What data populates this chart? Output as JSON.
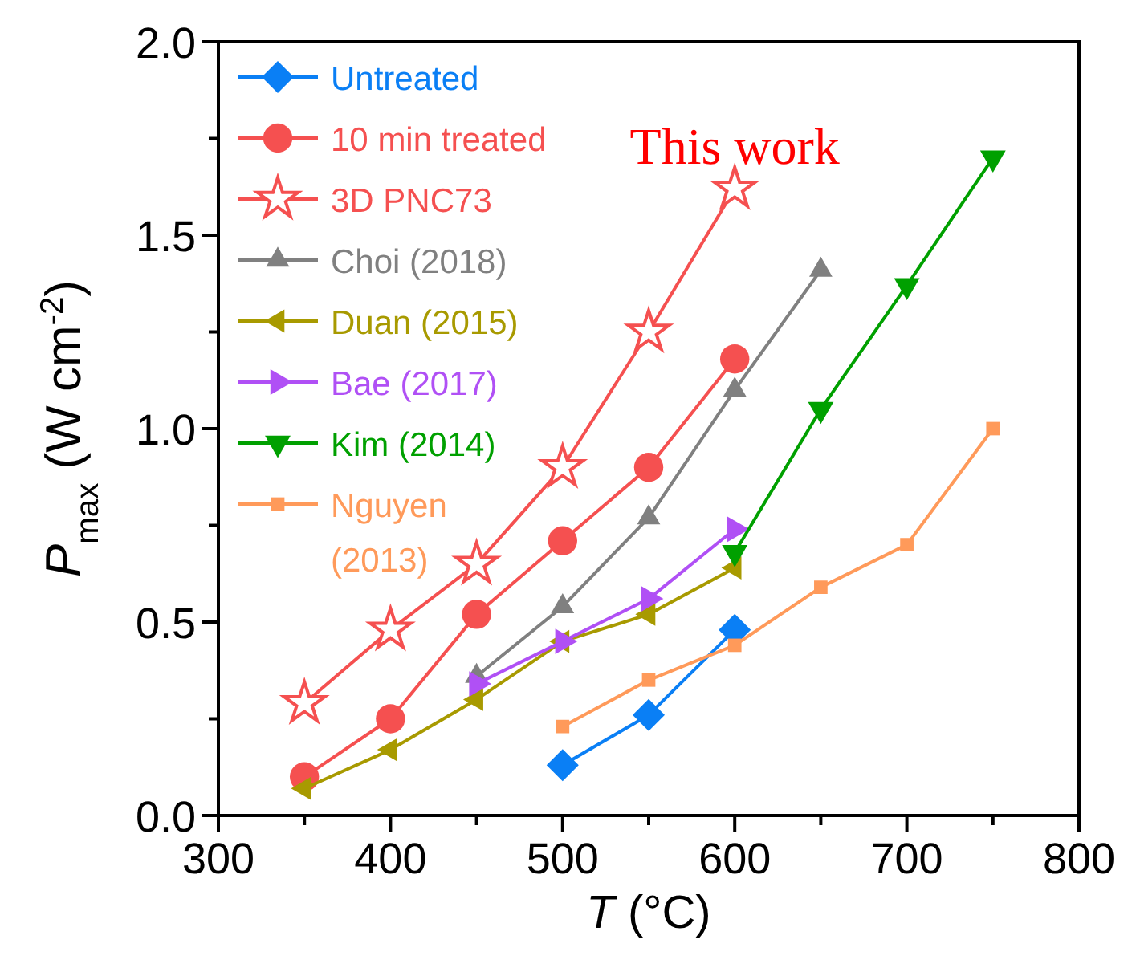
{
  "chart_data": {
    "type": "line",
    "xlabel": "T (°C)",
    "ylabel": "P$_{max}$ (W cm$^{-2}$)",
    "xlim": [
      300,
      800
    ],
    "xticks": [
      300,
      {
        "value": 350,
        "label": null
      },
      400,
      {
        "value": 450,
        "label": null
      },
      500,
      {
        "value": 550,
        "label": null
      },
      600,
      {
        "value": 650,
        "label": null
      },
      700,
      {
        "value": 750,
        "label": null
      },
      800
    ],
    "ylim": [
      0,
      2
    ],
    "yticks": [
      "0.0",
      {
        "value": 0.25,
        "label": null
      },
      {
        "value": 0.5,
        "label": "0.5"
      },
      {
        "value": 0.75,
        "label": null
      },
      {
        "value": 1,
        "label": "1.0"
      },
      {
        "value": 1.25,
        "label": null
      },
      {
        "value": 1.5,
        "label": "1.5"
      },
      {
        "value": 1.75,
        "label": null
      },
      {
        "value": 2,
        "label": "2.0"
      }
    ],
    "grid": false,
    "legend": "top left",
    "line_style": "solid",
    "annotations": [
      "This work"
    ],
    "series": [
      {
        "name": "Untreated",
        "color": "#0a7ff5",
        "marker": "diamond",
        "x": [
          500,
          550,
          600
        ],
        "values": [
          0.13,
          0.26,
          0.48
        ]
      },
      {
        "name": "10 min treated",
        "color": "#f55050",
        "marker": "circle",
        "x": [
          350,
          400,
          450,
          500,
          550,
          600
        ],
        "values": [
          0.1,
          0.25,
          0.52,
          0.71,
          0.9,
          1.18
        ]
      },
      {
        "name": "3D PNC73",
        "color": "#f55050",
        "marker": "star",
        "x": [
          350,
          400,
          450,
          500,
          550,
          600
        ],
        "values": [
          0.29,
          0.48,
          0.65,
          0.9,
          1.25,
          1.62
        ]
      },
      {
        "name": "Choi (2018)",
        "color": "#808080",
        "marker": "triangle",
        "x": [
          450,
          500,
          550,
          600,
          650
        ],
        "values": [
          0.36,
          0.54,
          0.77,
          1.1,
          1.41
        ]
      },
      {
        "name": "Duan (2015)",
        "color": "#a89a00",
        "marker": "triangle-left",
        "x": [
          350,
          400,
          450,
          500,
          550,
          600
        ],
        "values": [
          0.07,
          0.17,
          0.3,
          0.45,
          0.52,
          0.64
        ]
      },
      {
        "name": "Bae (2017)",
        "color": "#b050f5",
        "marker": "triangle-right",
        "x": [
          450,
          500,
          550,
          600
        ],
        "values": [
          0.34,
          0.45,
          0.56,
          0.74
        ]
      },
      {
        "name": "Kim (2014)",
        "color": "#00a000",
        "marker": "triangle-down",
        "x": [
          600,
          650,
          700,
          750
        ],
        "values": [
          0.68,
          1.05,
          1.37,
          1.7
        ]
      },
      {
        "name": "Nguyen\n(2013)",
        "color": "#ff9a5a",
        "marker": "square",
        "x": [
          500,
          550,
          600,
          650,
          700,
          750
        ],
        "values": [
          0.23,
          0.35,
          0.44,
          0.59,
          0.7,
          1.0
        ]
      }
    ]
  }
}
